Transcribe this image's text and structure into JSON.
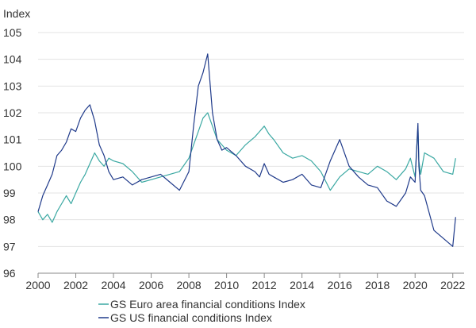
{
  "chart_data": {
    "type": "line",
    "title": "",
    "ylabel": "Index",
    "xlabel": "",
    "ylim": [
      96,
      105
    ],
    "xlim": [
      2000,
      2022.6
    ],
    "y_ticks": [
      "96",
      "97",
      "98",
      "99",
      "100",
      "101",
      "102",
      "103",
      "104",
      "105"
    ],
    "x_ticks": [
      "2000",
      "2002",
      "2004",
      "2006",
      "2008",
      "2010",
      "2012",
      "2014",
      "2016",
      "2018",
      "2020",
      "2022"
    ],
    "grid": "horizontal",
    "legend_position": "bottom-center",
    "series": [
      {
        "name": "GS Euro area financial conditions Index",
        "color": "#3aa8a2",
        "x": [
          2000.0,
          2000.25,
          2000.5,
          2000.75,
          2001.0,
          2001.25,
          2001.5,
          2001.75,
          2002.0,
          2002.25,
          2002.5,
          2002.75,
          2003.0,
          2003.25,
          2003.5,
          2003.75,
          2004.0,
          2004.5,
          2005.0,
          2005.5,
          2006.0,
          2006.5,
          2007.0,
          2007.5,
          2008.0,
          2008.25,
          2008.5,
          2008.75,
          2009.0,
          2009.25,
          2009.5,
          2009.75,
          2010.0,
          2010.5,
          2011.0,
          2011.5,
          2011.75,
          2012.0,
          2012.25,
          2012.5,
          2013.0,
          2013.5,
          2014.0,
          2014.5,
          2015.0,
          2015.5,
          2016.0,
          2016.5,
          2017.0,
          2017.5,
          2018.0,
          2018.5,
          2019.0,
          2019.5,
          2019.75,
          2020.0,
          2020.15,
          2020.2,
          2020.3,
          2020.5,
          2021.0,
          2021.5,
          2022.0,
          2022.15
        ],
        "values": [
          98.3,
          98.0,
          98.2,
          97.9,
          98.3,
          98.6,
          98.9,
          98.6,
          99.0,
          99.4,
          99.7,
          100.1,
          100.5,
          100.2,
          100.0,
          100.3,
          100.2,
          100.1,
          99.8,
          99.4,
          99.5,
          99.6,
          99.7,
          99.8,
          100.3,
          100.8,
          101.3,
          101.8,
          102.0,
          101.5,
          101.0,
          100.8,
          100.6,
          100.4,
          100.8,
          101.1,
          101.3,
          101.5,
          101.2,
          101.0,
          100.5,
          100.3,
          100.4,
          100.2,
          99.8,
          99.1,
          99.6,
          99.9,
          99.8,
          99.7,
          100.0,
          99.8,
          99.5,
          99.9,
          100.3,
          99.6,
          101.5,
          100.2,
          99.7,
          100.5,
          100.3,
          99.8,
          99.7,
          100.3
        ]
      },
      {
        "name": "GS US financial conditions Index",
        "color": "#1f3a8a",
        "x": [
          2000.0,
          2000.25,
          2000.5,
          2000.75,
          2001.0,
          2001.25,
          2001.5,
          2001.75,
          2002.0,
          2002.25,
          2002.5,
          2002.75,
          2003.0,
          2003.25,
          2003.5,
          2003.75,
          2004.0,
          2004.5,
          2005.0,
          2005.5,
          2006.0,
          2006.5,
          2007.0,
          2007.5,
          2008.0,
          2008.25,
          2008.5,
          2008.75,
          2009.0,
          2009.25,
          2009.5,
          2009.75,
          2010.0,
          2010.5,
          2011.0,
          2011.5,
          2011.75,
          2012.0,
          2012.25,
          2012.5,
          2013.0,
          2013.5,
          2014.0,
          2014.5,
          2015.0,
          2015.5,
          2016.0,
          2016.5,
          2017.0,
          2017.5,
          2018.0,
          2018.5,
          2019.0,
          2019.5,
          2019.75,
          2020.0,
          2020.15,
          2020.2,
          2020.3,
          2020.5,
          2021.0,
          2021.5,
          2022.0,
          2022.15
        ],
        "values": [
          98.3,
          98.9,
          99.3,
          99.7,
          100.4,
          100.6,
          100.9,
          101.4,
          101.3,
          101.8,
          102.1,
          102.3,
          101.7,
          100.8,
          100.4,
          99.8,
          99.5,
          99.6,
          99.3,
          99.5,
          99.6,
          99.7,
          99.4,
          99.1,
          99.8,
          101.5,
          103.0,
          103.5,
          104.2,
          102.0,
          101.0,
          100.6,
          100.7,
          100.4,
          100.0,
          99.8,
          99.6,
          100.1,
          99.7,
          99.6,
          99.4,
          99.5,
          99.7,
          99.3,
          99.2,
          100.2,
          101.0,
          100.0,
          99.6,
          99.3,
          99.2,
          98.7,
          98.5,
          99.0,
          99.6,
          99.4,
          101.6,
          100.0,
          99.1,
          98.9,
          97.6,
          97.3,
          97.0,
          98.1
        ]
      }
    ]
  }
}
